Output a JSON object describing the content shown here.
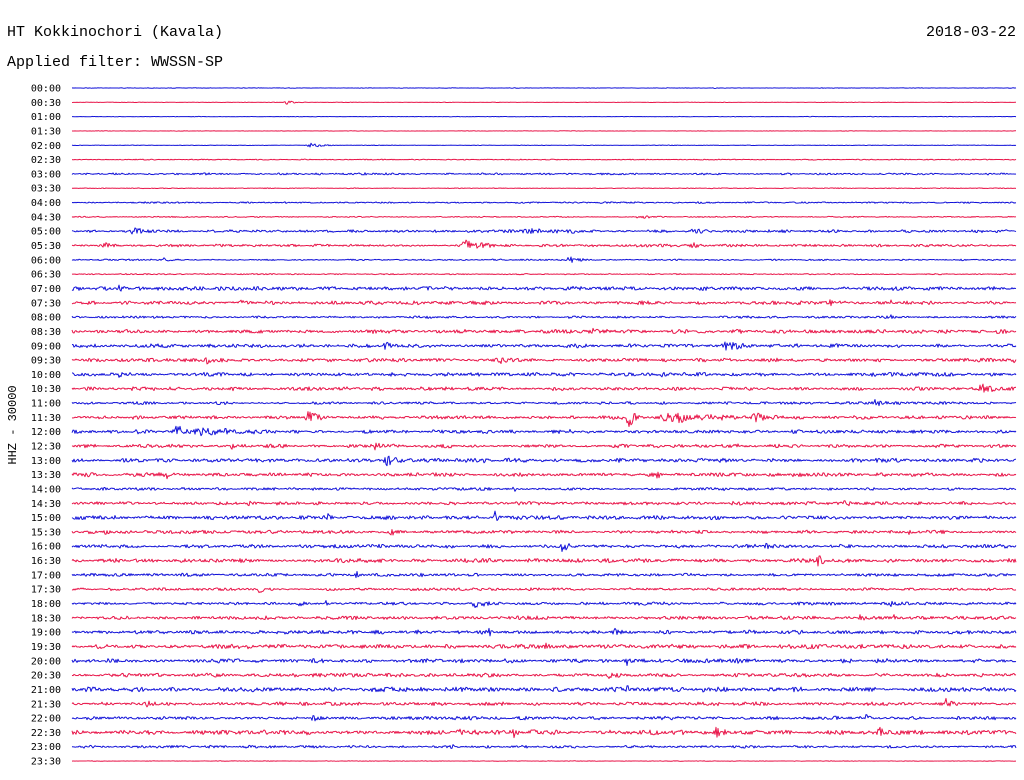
{
  "chart_data": {
    "type": "line",
    "title": "HT Kokkinochori (Kavala)",
    "date": "2018-03-22",
    "subtitle": "Applied filter: WWSSN-SP",
    "ylabel": "HHZ - 30000",
    "x_range": [
      0,
      30
    ],
    "trace_colors": [
      "#1212d8",
      "#e81448"
    ],
    "rows": [
      {
        "label": "00:00",
        "noise": 0.015,
        "events": [
          [
            1.5,
            0.1,
            0.05
          ],
          [
            20.4,
            0.1,
            0.05
          ]
        ]
      },
      {
        "label": "00:30",
        "noise": 0.012,
        "events": [
          [
            6.7,
            0.8,
            0.15
          ]
        ]
      },
      {
        "label": "01:00",
        "noise": 0.012,
        "events": []
      },
      {
        "label": "01:30",
        "noise": 0.012,
        "events": []
      },
      {
        "label": "02:00",
        "noise": 0.015,
        "events": [
          [
            7.4,
            1.1,
            0.2
          ]
        ]
      },
      {
        "label": "02:30",
        "noise": 0.025,
        "events": []
      },
      {
        "label": "03:00",
        "noise": 0.05,
        "events": [
          [
            9.0,
            1.5,
            0.06
          ]
        ]
      },
      {
        "label": "03:30",
        "noise": 0.02,
        "events": []
      },
      {
        "label": "04:00",
        "noise": 0.04,
        "events": []
      },
      {
        "label": "04:30",
        "noise": 0.03,
        "events": [
          [
            17.9,
            1.0,
            0.12
          ]
        ]
      },
      {
        "label": "05:00",
        "noise": 0.07,
        "events": [
          [
            1.8,
            1.0,
            0.25
          ],
          [
            8.7,
            0.5,
            0.12
          ],
          [
            14.2,
            3.2,
            0.15
          ],
          [
            19.5,
            1.5,
            0.1
          ]
        ]
      },
      {
        "label": "05:30",
        "noise": 0.07,
        "events": [
          [
            0.9,
            0.8,
            0.2
          ],
          [
            12.3,
            1.5,
            0.4
          ],
          [
            19.6,
            0.7,
            0.25
          ]
        ]
      },
      {
        "label": "06:00",
        "noise": 0.04,
        "events": [
          [
            2.9,
            0.2,
            0.3
          ],
          [
            15.7,
            0.8,
            0.2
          ]
        ]
      },
      {
        "label": "06:30",
        "noise": 0.03,
        "events": []
      },
      {
        "label": "07:00",
        "noise": 0.1,
        "events": [
          [
            1.4,
            0.5,
            0.2
          ]
        ]
      },
      {
        "label": "07:30",
        "noise": 0.09,
        "events": [
          [
            5.2,
            0.5,
            0.15
          ],
          [
            24.0,
            0.6,
            0.15
          ],
          [
            26.0,
            0.1,
            0.3
          ]
        ]
      },
      {
        "label": "08:00",
        "noise": 0.06,
        "events": [
          [
            11.2,
            0.5,
            0.12
          ],
          [
            26.0,
            0.1,
            0.15
          ]
        ]
      },
      {
        "label": "08:30",
        "noise": 0.1,
        "events": [
          [
            16.5,
            0.6,
            0.15
          ]
        ]
      },
      {
        "label": "09:00",
        "noise": 0.1,
        "events": [
          [
            9.8,
            0.8,
            0.2
          ],
          [
            20.6,
            1.2,
            0.3
          ]
        ]
      },
      {
        "label": "09:30",
        "noise": 0.09,
        "events": [
          [
            4.2,
            0.5,
            0.25
          ],
          [
            13.5,
            0.6,
            0.15
          ],
          [
            29.9,
            0.1,
            0.25
          ]
        ]
      },
      {
        "label": "10:00",
        "noise": 0.1,
        "events": [
          [
            1.4,
            0.2,
            0.35
          ],
          [
            18.7,
            0.2,
            0.3
          ]
        ]
      },
      {
        "label": "10:30",
        "noise": 0.09,
        "events": [
          [
            5.0,
            0.5,
            0.15
          ],
          [
            28.7,
            1.3,
            0.3
          ]
        ]
      },
      {
        "label": "11:00",
        "noise": 0.07,
        "events": [
          [
            25.4,
            0.8,
            0.2
          ]
        ]
      },
      {
        "label": "11:30",
        "noise": 0.09,
        "events": [
          [
            7.4,
            0.8,
            0.55
          ],
          [
            17.6,
            0.6,
            0.85
          ],
          [
            18.4,
            4.5,
            0.3
          ],
          [
            21.6,
            0.8,
            0.5
          ]
        ]
      },
      {
        "label": "12:00",
        "noise": 0.09,
        "events": [
          [
            2.0,
            0.2,
            0.35
          ],
          [
            3.2,
            0.6,
            0.65
          ],
          [
            3.8,
            2.8,
            0.25
          ],
          [
            6.1,
            0.4,
            0.3
          ],
          [
            15.8,
            0.2,
            0.2
          ]
        ]
      },
      {
        "label": "12:30",
        "noise": 0.09,
        "events": [
          [
            5.0,
            0.3,
            0.25
          ],
          [
            9.5,
            0.5,
            0.35
          ],
          [
            21.0,
            0.5,
            0.2
          ]
        ]
      },
      {
        "label": "13:00",
        "noise": 0.1,
        "events": [
          [
            3.1,
            0.2,
            0.2
          ],
          [
            9.9,
            1.0,
            0.4
          ],
          [
            13.0,
            0.5,
            0.15
          ]
        ]
      },
      {
        "label": "13:30",
        "noise": 0.1,
        "events": [
          [
            3.0,
            0.2,
            0.3
          ],
          [
            14.2,
            0.2,
            0.35
          ],
          [
            18.5,
            0.3,
            0.3
          ]
        ]
      },
      {
        "label": "14:00",
        "noise": 0.07,
        "events": [
          [
            3.4,
            0.2,
            0.3
          ],
          [
            14.0,
            0.3,
            0.15
          ],
          [
            20.7,
            0.1,
            0.3
          ]
        ]
      },
      {
        "label": "14:30",
        "noise": 0.09,
        "events": [
          [
            5.5,
            0.6,
            0.15
          ],
          [
            24.5,
            0.5,
            0.15
          ]
        ]
      },
      {
        "label": "15:00",
        "noise": 0.1,
        "events": [
          [
            6.0,
            0.5,
            0.15
          ],
          [
            8.1,
            0.2,
            0.45
          ],
          [
            13.4,
            0.3,
            0.35
          ],
          [
            27.9,
            0.2,
            0.35
          ]
        ]
      },
      {
        "label": "15:30",
        "noise": 0.09,
        "events": [
          [
            1.0,
            0.5,
            0.15
          ],
          [
            10.1,
            0.3,
            0.25
          ],
          [
            26.5,
            0.8,
            0.15
          ]
        ]
      },
      {
        "label": "16:00",
        "noise": 0.09,
        "events": [
          [
            1.9,
            0.2,
            0.45
          ],
          [
            15.5,
            0.5,
            0.35
          ],
          [
            22.0,
            0.5,
            0.2
          ]
        ]
      },
      {
        "label": "16:30",
        "noise": 0.1,
        "events": [
          [
            23.6,
            0.6,
            0.35
          ]
        ]
      },
      {
        "label": "17:00",
        "noise": 0.08,
        "events": [
          [
            9.0,
            0.2,
            0.3
          ],
          [
            11.0,
            0.5,
            0.15
          ]
        ]
      },
      {
        "label": "17:30",
        "noise": 0.07,
        "events": [
          [
            5.9,
            0.3,
            0.35
          ],
          [
            17.7,
            0.1,
            0.25
          ]
        ]
      },
      {
        "label": "18:00",
        "noise": 0.08,
        "events": [
          [
            7.2,
            0.2,
            0.35
          ],
          [
            8.0,
            0.2,
            0.35
          ],
          [
            12.6,
            1.1,
            0.3
          ],
          [
            26.0,
            0.1,
            0.25
          ]
        ]
      },
      {
        "label": "18:30",
        "noise": 0.09,
        "events": [
          [
            25.0,
            0.3,
            0.2
          ],
          [
            26.1,
            0.1,
            0.25
          ]
        ]
      },
      {
        "label": "19:00",
        "noise": 0.1,
        "events": [
          [
            10.9,
            0.2,
            0.35
          ],
          [
            13.2,
            0.3,
            0.2
          ],
          [
            17.2,
            0.3,
            0.2
          ],
          [
            20.1,
            0.2,
            0.3
          ]
        ]
      },
      {
        "label": "19:30",
        "noise": 0.11,
        "events": [
          [
            5.5,
            0.5,
            0.15
          ],
          [
            15.0,
            0.5,
            0.15
          ]
        ]
      },
      {
        "label": "20:00",
        "noise": 0.1,
        "events": [
          [
            17.6,
            0.2,
            0.3
          ],
          [
            21.0,
            0.3,
            0.2
          ]
        ]
      },
      {
        "label": "20:30",
        "noise": 0.1,
        "events": [
          [
            17.0,
            0.4,
            0.2
          ]
        ]
      },
      {
        "label": "21:00",
        "noise": 0.12,
        "events": [
          [
            17.6,
            0.3,
            0.35
          ],
          [
            20.0,
            0.5,
            0.2
          ]
        ]
      },
      {
        "label": "21:30",
        "noise": 0.09,
        "events": [
          [
            2.3,
            0.3,
            0.2
          ],
          [
            27.7,
            0.5,
            0.3
          ]
        ]
      },
      {
        "label": "22:00",
        "noise": 0.09,
        "events": [
          [
            7.6,
            0.3,
            0.2
          ],
          [
            12.0,
            0.3,
            0.2
          ],
          [
            25.2,
            0.3,
            0.3
          ]
        ]
      },
      {
        "label": "22:30",
        "noise": 0.12,
        "events": [
          [
            6.0,
            0.3,
            0.25
          ],
          [
            12.2,
            0.3,
            0.55
          ],
          [
            14.0,
            0.3,
            0.3
          ],
          [
            20.4,
            0.5,
            0.35
          ],
          [
            25.6,
            0.3,
            0.35
          ]
        ]
      },
      {
        "label": "23:00",
        "noise": 0.07,
        "events": [
          [
            12.0,
            0.3,
            0.15
          ]
        ]
      },
      {
        "label": "23:30",
        "noise": 0.015,
        "events": [
          [
            0.6,
            0.1,
            0.1
          ]
        ]
      }
    ]
  }
}
